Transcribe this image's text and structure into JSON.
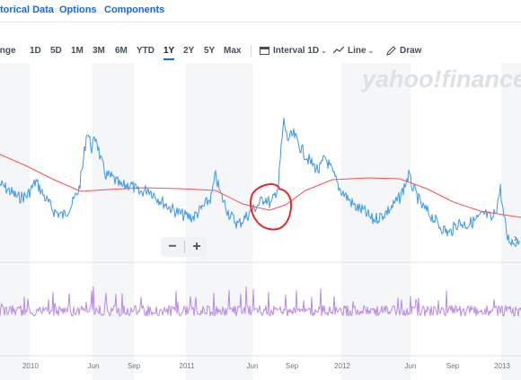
{
  "tabs": [
    "torical Data",
    "Options",
    "Components"
  ],
  "toolbar": {
    "range_label": "Range",
    "ranges": [
      "1D",
      "5D",
      "1M",
      "3M",
      "6M",
      "YTD",
      "1Y",
      "2Y",
      "5Y",
      "Max"
    ],
    "active_range": "1Y",
    "interval_label": "Interval",
    "interval_value": "1D",
    "line_label": "Line",
    "draw_label": "Draw"
  },
  "watermark": "yahoo!finance",
  "zoom": {
    "minus": "−",
    "plus": "+"
  },
  "x_axis": [
    "2010",
    "Jun",
    "Sep",
    "2011",
    "Jun",
    "Sep",
    "2012",
    "Jun",
    "Sep",
    "2013"
  ],
  "colors": {
    "price_line": "#3d97f0",
    "moving_average": "#ff4f4f",
    "volume_line": "#b98ae8",
    "annotation": "#e8262a",
    "accent": "#0f69ff",
    "band": "#f5f6f7"
  }
}
